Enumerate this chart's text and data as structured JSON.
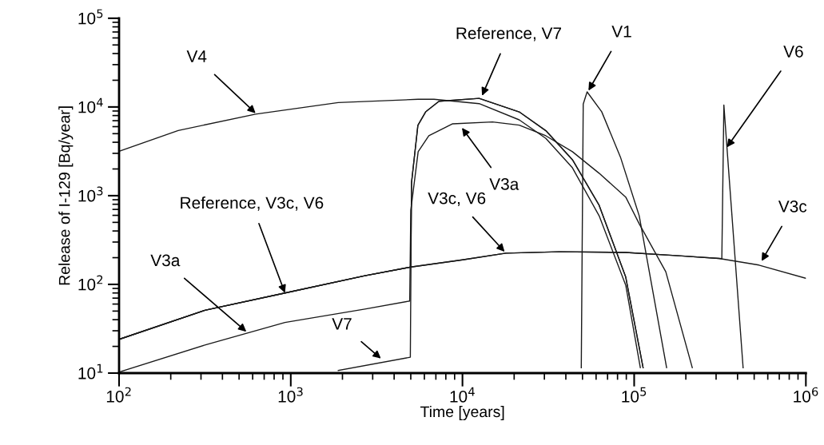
{
  "chart_data": {
    "type": "line",
    "xlabel": "Time [years]",
    "ylabel": "Release of I-129 [Bq/year]",
    "log": "xy",
    "grid": false,
    "legend": false,
    "marker": "none",
    "line_style": "solid",
    "xlim": [
      100,
      1000000
    ],
    "ylim": [
      10,
      100000
    ],
    "xticks": [
      {
        "value": 100,
        "label": "10$^{2}$"
      },
      {
        "value": 1000,
        "label": "10$^{3}$"
      },
      {
        "value": 10000,
        "label": "10$^{4}$"
      },
      {
        "value": 100000,
        "label": "10$^{5}$"
      },
      {
        "value": 1000000,
        "label": "10$^{6}$"
      }
    ],
    "yticks": [
      {
        "value": 10,
        "label": "10$^{1}$"
      },
      {
        "value": 100,
        "label": "10$^{2}$"
      },
      {
        "value": 1000,
        "label": "10$^{3}$"
      },
      {
        "value": 10000,
        "label": "10$^{4}$"
      },
      {
        "value": 100000,
        "label": "10$^{5}$"
      }
    ],
    "series": [
      {
        "color": "#1a1a1a",
        "x": [
          100,
          316,
          925,
          2700,
          5000,
          5050,
          5500,
          6100,
          7300,
          12500,
          21400,
          30600,
          43700,
          62500,
          89300,
          112700
        ],
        "values": [
          24,
          51,
          80,
          125,
          157,
          1400,
          6200,
          8800,
          11600,
          12500,
          8800,
          5400,
          2540,
          780,
          121,
          11.5
        ]
      },
      {
        "color": "#1a1a1a",
        "x": [
          100,
          221,
          624,
          1890,
          5520,
          6820,
          12500,
          21400,
          30600,
          43700,
          62500,
          89300,
          108600
        ],
        "values": [
          3160,
          5430,
          8300,
          11200,
          12200,
          12200,
          10900,
          7160,
          4420,
          2060,
          593,
          98,
          11.5
        ]
      },
      {
        "color": "#1a1a1a",
        "x": [
          102,
          316,
          925,
          2700,
          4930,
          5000,
          5520,
          6370,
          8770,
          14960,
          21400,
          30600,
          43700,
          62500,
          89300,
          107000,
          152800,
          218000
        ],
        "values": [
          10.4,
          20.7,
          37.2,
          52.6,
          64.9,
          681,
          3130,
          4730,
          6460,
          6780,
          6240,
          4730,
          3130,
          1790,
          964,
          482,
          139,
          11.5
        ]
      },
      {
        "color": "#1a1a1a",
        "x": [
          1890,
          4970,
          5050,
          5500,
          6100,
          7300,
          12500,
          21400,
          30600,
          43700,
          62500,
          89300,
          112700
        ],
        "values": [
          10.7,
          15.1,
          1400,
          6200,
          8800,
          11600,
          12500,
          8800,
          5400,
          2540,
          780,
          121,
          11.5
        ]
      },
      {
        "color": "#1a1a1a",
        "x": [
          100,
          316,
          925,
          2700,
          5000,
          10000,
          17900,
          36600,
          89300,
          182000,
          312000,
          533000,
          1000000
        ],
        "values": [
          24,
          51,
          80,
          125,
          157,
          189,
          225,
          233,
          229,
          210,
          196,
          165,
          117
        ]
      },
      {
        "color": "#1a1a1a",
        "x": [
          100,
          316,
          925,
          2700,
          5000,
          10000,
          17900,
          36600,
          89300,
          182000,
          312000,
          324000,
          333000,
          347000,
          431000
        ],
        "values": [
          24,
          51,
          80,
          125,
          157,
          189,
          225,
          233,
          229,
          210,
          196,
          195,
          10500,
          3510,
          11.5
        ]
      },
      {
        "color": "#1a1a1a",
        "x": [
          49200,
          50500,
          53200,
          64700,
          83200,
          107000,
          154500
        ],
        "values": [
          11.5,
          10800,
          14800,
          8830,
          2720,
          593,
          11.5
        ]
      }
    ],
    "annotations": [
      {
        "text": "V4",
        "x": 624,
        "y": 8500
      },
      {
        "text": "Reference, V3c, V6",
        "x": 925,
        "y": 80
      },
      {
        "text": "V3a",
        "x": 551,
        "y": 29.3
      },
      {
        "text": "V7",
        "x": 3350,
        "y": 14.6
      },
      {
        "text": "Reference, V7",
        "x": 13000,
        "y": 13400
      },
      {
        "text": "V1",
        "x": 54200,
        "y": 15300
      },
      {
        "text": "V3a",
        "x": 9930,
        "y": 5820
      },
      {
        "text": "V3c, V6",
        "x": 17600,
        "y": 233
      },
      {
        "text": "V6",
        "x": 347000,
        "y": 3510
      },
      {
        "text": "V3c",
        "x": 552000,
        "y": 183
      }
    ]
  }
}
